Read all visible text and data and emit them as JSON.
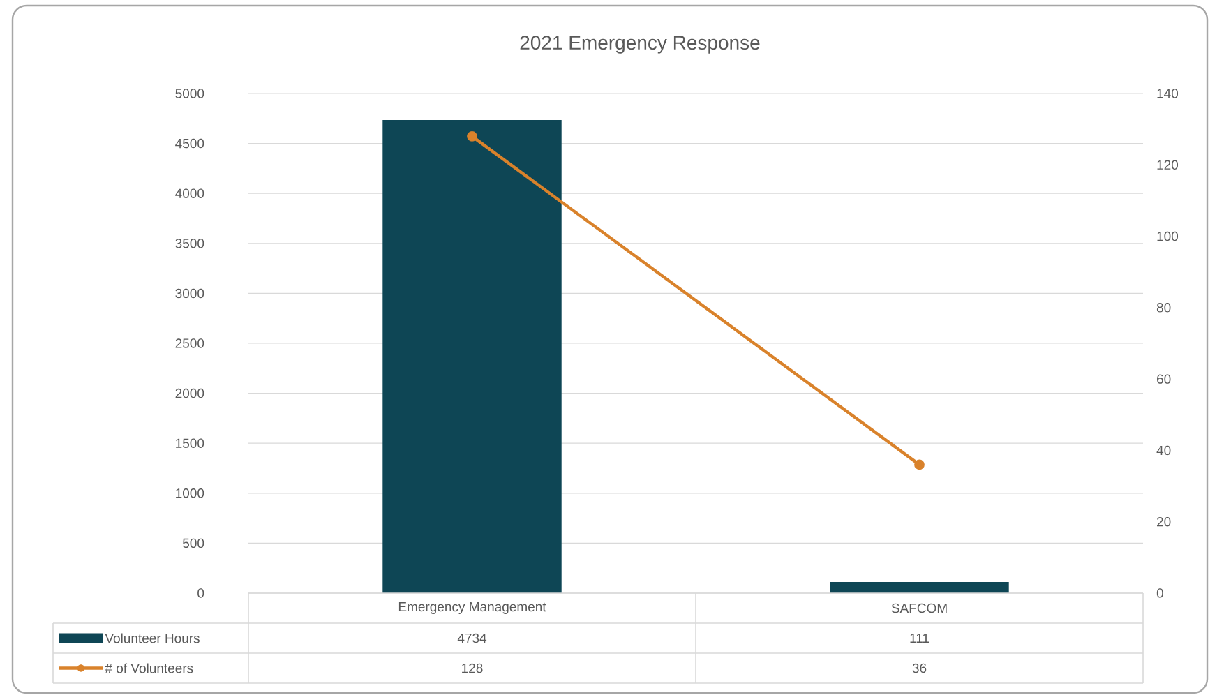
{
  "chart_data": {
    "type": "bar",
    "title": "2021 Emergency Response",
    "categories": [
      "Emergency Management",
      "SAFCOM"
    ],
    "series": [
      {
        "name": "Volunteer Hours",
        "color": "#0e4655",
        "values": [
          4734,
          111
        ]
      },
      {
        "name": "# of Volunteers",
        "type": "line",
        "axis": "y2",
        "color": "#d9822b",
        "marker": "circle",
        "values": [
          128,
          36
        ]
      }
    ],
    "ylim": [
      0,
      5000
    ],
    "yticks": [
      0,
      500,
      1000,
      1500,
      2000,
      2500,
      3000,
      3500,
      4000,
      4500,
      5000
    ],
    "y2lim": [
      0,
      140
    ],
    "y2ticks": [
      0,
      20,
      40,
      60,
      80,
      100,
      120,
      140
    ],
    "grid": "y",
    "legend": "bottom",
    "data_labels": true
  }
}
